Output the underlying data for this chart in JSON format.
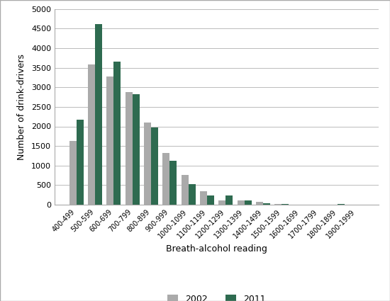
{
  "categories": [
    "400-499",
    "500-599",
    "600-699",
    "700-799",
    "800-899",
    "900-999",
    "1000-1099",
    "1100-1199",
    "1200-1299",
    "1300-1399",
    "1400-1499",
    "1500-1599",
    "1600-1699",
    "1700-1799",
    "1800-1899",
    "1900-1999"
  ],
  "values_2002": [
    1620,
    3580,
    3280,
    2880,
    2100,
    1330,
    760,
    350,
    115,
    100,
    65,
    20,
    5,
    5,
    5,
    5
  ],
  "values_2011": [
    2180,
    4620,
    3660,
    2820,
    1970,
    1130,
    530,
    235,
    230,
    110,
    40,
    20,
    5,
    5,
    15,
    5
  ],
  "color_2002": "#aaaaaa",
  "color_2011": "#2e6b50",
  "ylabel": "Number of drink-drivers",
  "xlabel": "Breath-alcohol reading",
  "ylim": [
    0,
    5000
  ],
  "yticks": [
    0,
    500,
    1000,
    1500,
    2000,
    2500,
    3000,
    3500,
    4000,
    4500,
    5000
  ],
  "legend_labels": [
    "2002",
    "2011"
  ],
  "background_color": "#ffffff",
  "grid_color": "#bbbbbb",
  "border_color": "#aaaaaa"
}
